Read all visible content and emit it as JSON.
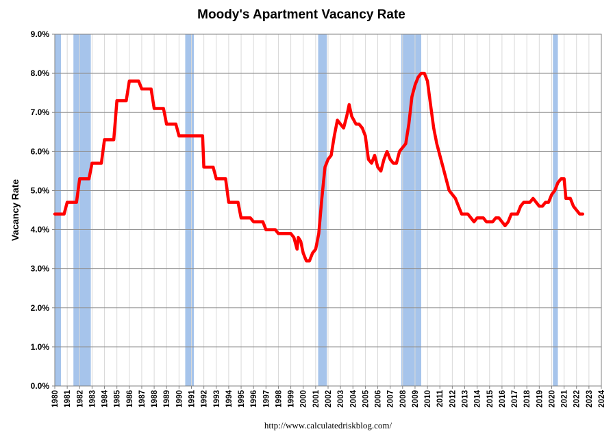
{
  "chart_data": {
    "type": "line",
    "title": "Moody's Apartment Vacancy Rate",
    "ylabel": "Vacancy Rate",
    "xlabel": "",
    "source": "http://www.calculatedriskblog.com/",
    "ylim": [
      0,
      9
    ],
    "xlim": [
      1980,
      2024
    ],
    "y_ticks": [
      "0.0%",
      "1.0%",
      "2.0%",
      "3.0%",
      "4.0%",
      "5.0%",
      "6.0%",
      "7.0%",
      "8.0%",
      "9.0%"
    ],
    "x_ticks": [
      "1980",
      "1981",
      "1982",
      "1983",
      "1984",
      "1985",
      "1986",
      "1987",
      "1988",
      "1989",
      "1990",
      "1991",
      "1992",
      "1993",
      "1994",
      "1995",
      "1996",
      "1997",
      "1998",
      "1999",
      "2000",
      "2001",
      "2002",
      "2003",
      "2004",
      "2005",
      "2006",
      "2007",
      "2008",
      "2009",
      "2010",
      "2011",
      "2012",
      "2013",
      "2014",
      "2015",
      "2016",
      "2017",
      "2018",
      "2019",
      "2020",
      "2021",
      "2022",
      "2023",
      "2024"
    ],
    "grid": true,
    "recessions": [
      [
        1980.0,
        1980.5
      ],
      [
        1981.5,
        1982.9
      ],
      [
        1990.5,
        1991.2
      ],
      [
        2001.2,
        2001.9
      ],
      [
        2007.9,
        2009.5
      ],
      [
        2020.1,
        2020.5
      ]
    ],
    "series": [
      {
        "color": "#ff0000",
        "points": [
          [
            1980.0,
            4.4
          ],
          [
            1980.75,
            4.4
          ],
          [
            1981.0,
            4.7
          ],
          [
            1981.75,
            4.7
          ],
          [
            1982.0,
            5.3
          ],
          [
            1982.75,
            5.3
          ],
          [
            1983.0,
            5.7
          ],
          [
            1983.75,
            5.7
          ],
          [
            1984.0,
            6.3
          ],
          [
            1984.75,
            6.3
          ],
          [
            1985.0,
            7.3
          ],
          [
            1985.75,
            7.3
          ],
          [
            1986.0,
            7.8
          ],
          [
            1986.75,
            7.8
          ],
          [
            1987.0,
            7.6
          ],
          [
            1987.75,
            7.6
          ],
          [
            1988.0,
            7.1
          ],
          [
            1988.75,
            7.1
          ],
          [
            1989.0,
            6.7
          ],
          [
            1989.75,
            6.7
          ],
          [
            1990.0,
            6.4
          ],
          [
            1991.9,
            6.4
          ],
          [
            1992.0,
            5.6
          ],
          [
            1992.75,
            5.6
          ],
          [
            1993.0,
            5.3
          ],
          [
            1993.75,
            5.3
          ],
          [
            1994.0,
            4.7
          ],
          [
            1994.75,
            4.7
          ],
          [
            1995.0,
            4.3
          ],
          [
            1995.75,
            4.3
          ],
          [
            1996.0,
            4.2
          ],
          [
            1996.75,
            4.2
          ],
          [
            1997.0,
            4.0
          ],
          [
            1997.75,
            4.0
          ],
          [
            1998.0,
            3.9
          ],
          [
            1999.0,
            3.9
          ],
          [
            1999.25,
            3.8
          ],
          [
            1999.5,
            3.5
          ],
          [
            1999.6,
            3.8
          ],
          [
            1999.8,
            3.7
          ],
          [
            2000.0,
            3.4
          ],
          [
            2000.25,
            3.2
          ],
          [
            2000.5,
            3.2
          ],
          [
            2000.75,
            3.4
          ],
          [
            2001.0,
            3.5
          ],
          [
            2001.25,
            3.9
          ],
          [
            2001.5,
            4.8
          ],
          [
            2001.75,
            5.6
          ],
          [
            2002.0,
            5.8
          ],
          [
            2002.25,
            5.9
          ],
          [
            2002.5,
            6.4
          ],
          [
            2002.75,
            6.8
          ],
          [
            2003.0,
            6.7
          ],
          [
            2003.25,
            6.6
          ],
          [
            2003.5,
            6.9
          ],
          [
            2003.7,
            7.2
          ],
          [
            2003.9,
            6.9
          ],
          [
            2004.25,
            6.7
          ],
          [
            2004.5,
            6.7
          ],
          [
            2004.75,
            6.6
          ],
          [
            2005.0,
            6.4
          ],
          [
            2005.25,
            5.8
          ],
          [
            2005.5,
            5.7
          ],
          [
            2005.75,
            5.9
          ],
          [
            2006.0,
            5.6
          ],
          [
            2006.25,
            5.5
          ],
          [
            2006.5,
            5.8
          ],
          [
            2006.75,
            6.0
          ],
          [
            2007.0,
            5.8
          ],
          [
            2007.25,
            5.7
          ],
          [
            2007.5,
            5.7
          ],
          [
            2007.75,
            6.0
          ],
          [
            2008.0,
            6.1
          ],
          [
            2008.25,
            6.2
          ],
          [
            2008.5,
            6.7
          ],
          [
            2008.75,
            7.4
          ],
          [
            2009.0,
            7.7
          ],
          [
            2009.25,
            7.9
          ],
          [
            2009.5,
            8.0
          ],
          [
            2009.75,
            8.0
          ],
          [
            2010.0,
            7.8
          ],
          [
            2010.25,
            7.2
          ],
          [
            2010.5,
            6.6
          ],
          [
            2010.75,
            6.2
          ],
          [
            2011.0,
            5.9
          ],
          [
            2011.25,
            5.6
          ],
          [
            2011.5,
            5.3
          ],
          [
            2011.75,
            5.0
          ],
          [
            2012.0,
            4.9
          ],
          [
            2012.25,
            4.8
          ],
          [
            2012.5,
            4.6
          ],
          [
            2012.75,
            4.4
          ],
          [
            2013.0,
            4.4
          ],
          [
            2013.25,
            4.4
          ],
          [
            2013.5,
            4.3
          ],
          [
            2013.75,
            4.2
          ],
          [
            2014.0,
            4.3
          ],
          [
            2014.5,
            4.3
          ],
          [
            2014.75,
            4.2
          ],
          [
            2015.25,
            4.2
          ],
          [
            2015.5,
            4.3
          ],
          [
            2015.75,
            4.3
          ],
          [
            2016.0,
            4.2
          ],
          [
            2016.25,
            4.1
          ],
          [
            2016.5,
            4.2
          ],
          [
            2016.75,
            4.4
          ],
          [
            2017.25,
            4.4
          ],
          [
            2017.5,
            4.6
          ],
          [
            2017.75,
            4.7
          ],
          [
            2018.25,
            4.7
          ],
          [
            2018.5,
            4.8
          ],
          [
            2018.75,
            4.7
          ],
          [
            2019.0,
            4.6
          ],
          [
            2019.25,
            4.6
          ],
          [
            2019.5,
            4.7
          ],
          [
            2019.75,
            4.7
          ],
          [
            2020.0,
            4.9
          ],
          [
            2020.25,
            5.0
          ],
          [
            2020.5,
            5.2
          ],
          [
            2020.75,
            5.3
          ],
          [
            2021.0,
            5.3
          ],
          [
            2021.15,
            4.8
          ],
          [
            2021.5,
            4.8
          ],
          [
            2021.75,
            4.6
          ],
          [
            2022.0,
            4.5
          ],
          [
            2022.25,
            4.4
          ],
          [
            2022.5,
            4.4
          ]
        ]
      }
    ]
  }
}
